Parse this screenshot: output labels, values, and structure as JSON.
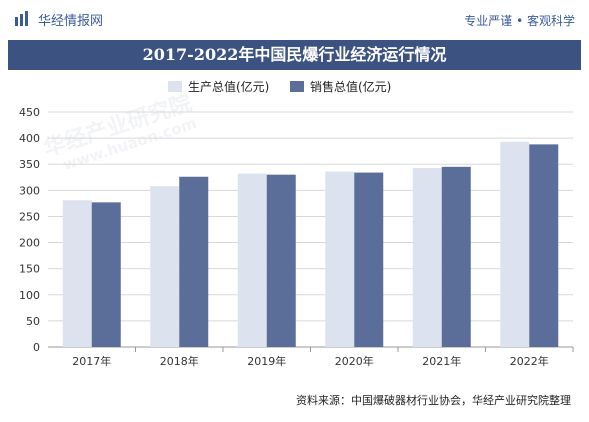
{
  "header": {
    "brand_name": "华经情报网",
    "slogan": "专业严谨 • 客观科学"
  },
  "title": "2017-2022年中国民爆行业经济运行情况",
  "source": "资料来源：中国爆破器材行业协会，华经产业研究院整理",
  "watermark": {
    "text_cn": "华经产业研究院",
    "text_url": "www.huaon.com"
  },
  "colors": {
    "title_bg": "#3c5381",
    "series_production": "#dde3ee",
    "series_sales": "#5b6e9a",
    "brand": "#3a5a9a"
  },
  "chart_data": {
    "type": "bar",
    "categories": [
      "2017年",
      "2018年",
      "2019年",
      "2020年",
      "2021年",
      "2022年"
    ],
    "series": [
      {
        "name": "生产总值(亿元)",
        "values": [
          281,
          308,
          332,
          336,
          343,
          393
        ]
      },
      {
        "name": "销售总值(亿元)",
        "values": [
          277,
          326,
          330,
          334,
          345,
          388
        ]
      }
    ],
    "ylim": [
      0,
      450
    ],
    "yticks": [
      0,
      50,
      100,
      150,
      200,
      250,
      300,
      350,
      400,
      450
    ],
    "grid": true,
    "legend_position": "top-center"
  }
}
